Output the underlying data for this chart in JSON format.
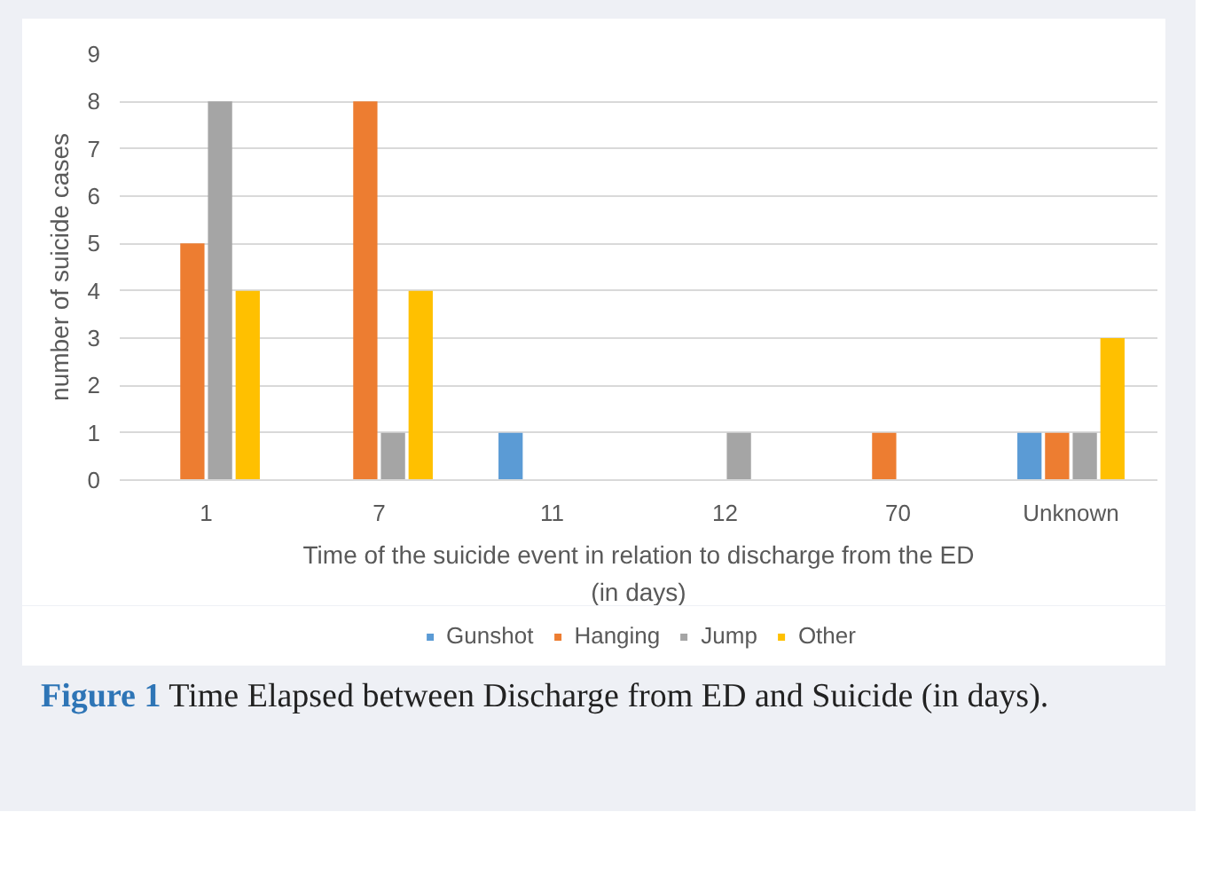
{
  "chart_data": {
    "type": "bar",
    "ylabel": "number of suicide cases",
    "xlabel": "Time of the suicide event in relation to discharge from the ED\n(in days)",
    "categories": [
      "1",
      "7",
      "11",
      "12",
      "70",
      "Unknown"
    ],
    "series": [
      {
        "name": "Gunshot",
        "color": "#5b9bd5",
        "values": [
          null,
          null,
          1,
          null,
          null,
          1
        ]
      },
      {
        "name": "Hanging",
        "color": "#ed7d31",
        "values": [
          5,
          8,
          null,
          null,
          1,
          1
        ]
      },
      {
        "name": "Jump",
        "color": "#a5a5a5",
        "values": [
          8,
          1,
          null,
          1,
          null,
          1
        ]
      },
      {
        "name": "Other",
        "color": "#ffc000",
        "values": [
          4,
          4,
          null,
          null,
          null,
          3
        ]
      }
    ],
    "ylim": [
      0,
      9
    ],
    "yticks": [
      0,
      1,
      2,
      3,
      4,
      5,
      6,
      7,
      8,
      9
    ],
    "grid": "y",
    "legend": "bottom",
    "annotations": [
      "Figure 1",
      "Time Elapsed between Discharge from ED and Suicide (in days)."
    ]
  }
}
